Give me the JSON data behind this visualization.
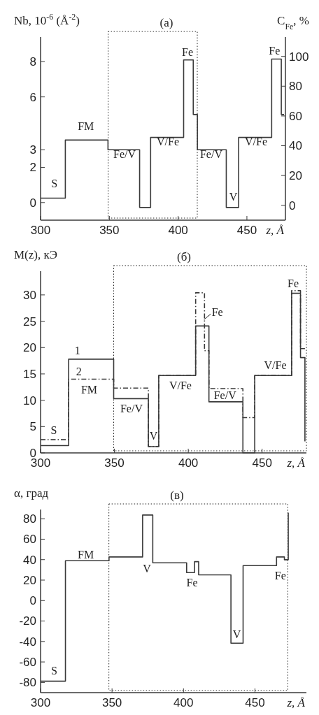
{
  "chart_data": [
    {
      "type": "step",
      "title": "(а)",
      "xlabel": "z, Å",
      "ylabel": "Nb, 10$^{-6}$ (Å$^{-2}$)",
      "y2label": "C$_{Fe}$, %",
      "xlim": [
        300,
        478
      ],
      "xticks": [
        300,
        350,
        400,
        450
      ],
      "ylim": [
        -1,
        9.4
      ],
      "yticks": [
        0,
        2,
        3,
        6,
        8
      ],
      "y2lim": [
        -10,
        113
      ],
      "y2ticks": [
        0,
        20,
        40,
        60,
        80,
        100
      ],
      "grid": false,
      "legend": false,
      "series": [
        {
          "color": "#3a3a3a",
          "line_style": "solid",
          "x": [
            300,
            318,
            349,
            372,
            380,
            404,
            411,
            414,
            435,
            444,
            468,
            475,
            477
          ],
          "values": [
            0.25,
            3.55,
            3.0,
            -0.28,
            3.7,
            8.1,
            5.0,
            3.0,
            -0.28,
            3.7,
            8.15,
            5.0,
            5.0
          ]
        }
      ],
      "annotations": [
        "S",
        "FM",
        "Fe/V",
        "V/Fe",
        "Fe",
        "Fe/V",
        "V",
        "V/Fe",
        "Fe"
      ]
    },
    {
      "type": "step",
      "title": "(б)",
      "xlabel": "z, Å",
      "ylabel": "M(z), кЭ",
      "xlim": [
        300,
        480
      ],
      "xticks": [
        300,
        350,
        400,
        450
      ],
      "ylim": [
        0,
        34.5
      ],
      "yticks": [
        0,
        5,
        10,
        15,
        20,
        25,
        30
      ],
      "grid": false,
      "legend": false,
      "series": [
        {
          "color": "#3a3a3a",
          "line_style": "dashed",
          "x": [
            300,
            319,
            349.5,
            373,
            380,
            405,
            411,
            414,
            437,
            445,
            470,
            476,
            479
          ],
          "values": [
            2.5,
            14.0,
            12.3,
            1.2,
            14.7,
            30.4,
            19.4,
            12.2,
            6.7,
            14.7,
            30.8,
            19.8,
            19.8
          ]
        },
        {
          "color": "#3a3a3a",
          "line_style": "solid",
          "x": [
            300,
            319,
            349.5,
            373,
            380,
            405,
            414,
            437,
            445,
            470,
            476,
            479
          ],
          "values": [
            1.4,
            17.8,
            10.3,
            1.2,
            14.7,
            24.1,
            9.7,
            0,
            14.7,
            30.3,
            18.1,
            2.2
          ]
        }
      ],
      "annotations": [
        "S",
        "1",
        "2",
        "FM",
        "Fe/V",
        "V",
        "V/Fe",
        "Fe",
        "Fe/V",
        "V/Fe",
        "Fe"
      ]
    },
    {
      "type": "step",
      "title": "(в)",
      "xlabel": "z, Å",
      "ylabel": "α, град",
      "xlim": [
        300,
        486
      ],
      "xticks": [
        300,
        350,
        400,
        450
      ],
      "ylim": [
        -90,
        89
      ],
      "yticks": [
        -80,
        -60,
        -40,
        -20,
        0,
        20,
        40,
        60,
        80
      ],
      "grid": false,
      "legend": false,
      "series": [
        {
          "color": "#3a3a3a",
          "line_style": "solid",
          "x": [
            300,
            317.4,
            347.9,
            371.4,
            378.5,
            402.2,
            407.7,
            410.6,
            433.2,
            441.7,
            465.1,
            470.6,
            473.3
          ],
          "values": [
            -78.8,
            39,
            42.6,
            83.6,
            36.9,
            27.3,
            38,
            25.1,
            -41.7,
            34.2,
            42.6,
            39.9,
            85.9
          ]
        }
      ],
      "annotations": [
        "S",
        "FM",
        "V",
        "Fe",
        "V",
        "Fe"
      ]
    }
  ]
}
